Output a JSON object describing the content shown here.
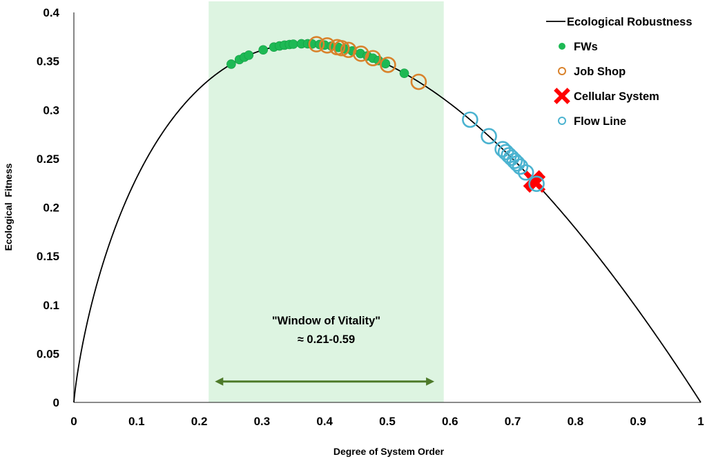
{
  "chart_data": {
    "type": "scatter",
    "title": "",
    "xlabel": "Degree of System Order",
    "ylabel": "Ecological  Fitness",
    "xlim": [
      0,
      1
    ],
    "ylim": [
      0,
      0.4
    ],
    "xticks": [
      "0",
      "0.1",
      "0.2",
      "0.3",
      "0.4",
      "0.5",
      "0.6",
      "0.7",
      "0.8",
      "0.9",
      "1"
    ],
    "xtick_values": [
      0,
      0.1,
      0.2,
      0.3,
      0.4,
      0.5,
      0.6,
      0.7,
      0.8,
      0.9,
      1.0
    ],
    "yticks": [
      "0",
      "0.05",
      "0.1",
      "0.15",
      "0.2",
      "0.25",
      "0.3",
      "0.35",
      "0.4"
    ],
    "ytick_values": [
      0,
      0.05,
      0.1,
      0.15,
      0.2,
      0.25,
      0.3,
      0.35,
      0.4
    ],
    "grid": false,
    "legend_position": "top-right",
    "curve": {
      "name": "Ecological Robustness",
      "formula": "-x*ln(x)",
      "color": "#000000"
    },
    "series": [
      {
        "name": "FWs",
        "marker": "filled-circle",
        "color": "#1DB954",
        "x": [
          0.251,
          0.264,
          0.272,
          0.279,
          0.302,
          0.319,
          0.328,
          0.336,
          0.344,
          0.35,
          0.363,
          0.373,
          0.38,
          0.392,
          0.4,
          0.411,
          0.422,
          0.433,
          0.444,
          0.457,
          0.468,
          0.477,
          0.486,
          0.497,
          0.527
        ]
      },
      {
        "name": "Job Shop",
        "marker": "open-circle",
        "color": "#D9822B",
        "x": [
          0.387,
          0.404,
          0.42,
          0.427,
          0.438,
          0.458,
          0.477,
          0.501,
          0.55
        ]
      },
      {
        "name": "Cellular System",
        "marker": "x",
        "color": "#FF0000",
        "x": [
          0.732,
          0.737
        ]
      },
      {
        "name": "Flow Line",
        "marker": "open-circle",
        "color": "#4BB3D0",
        "x": [
          0.632,
          0.662,
          0.684,
          0.689,
          0.694,
          0.698,
          0.703,
          0.707,
          0.712,
          0.721,
          0.738
        ]
      }
    ],
    "window": {
      "label": "\"Window of Vitality\"",
      "range_label": "≈ 0.21-0.59",
      "range": [
        0.215,
        0.59
      ],
      "arrow_range": [
        0.225,
        0.575
      ],
      "arrow_y": 0.025,
      "fill_color": "#DDF4E1",
      "arrow_color": "#4E7A2A"
    }
  }
}
